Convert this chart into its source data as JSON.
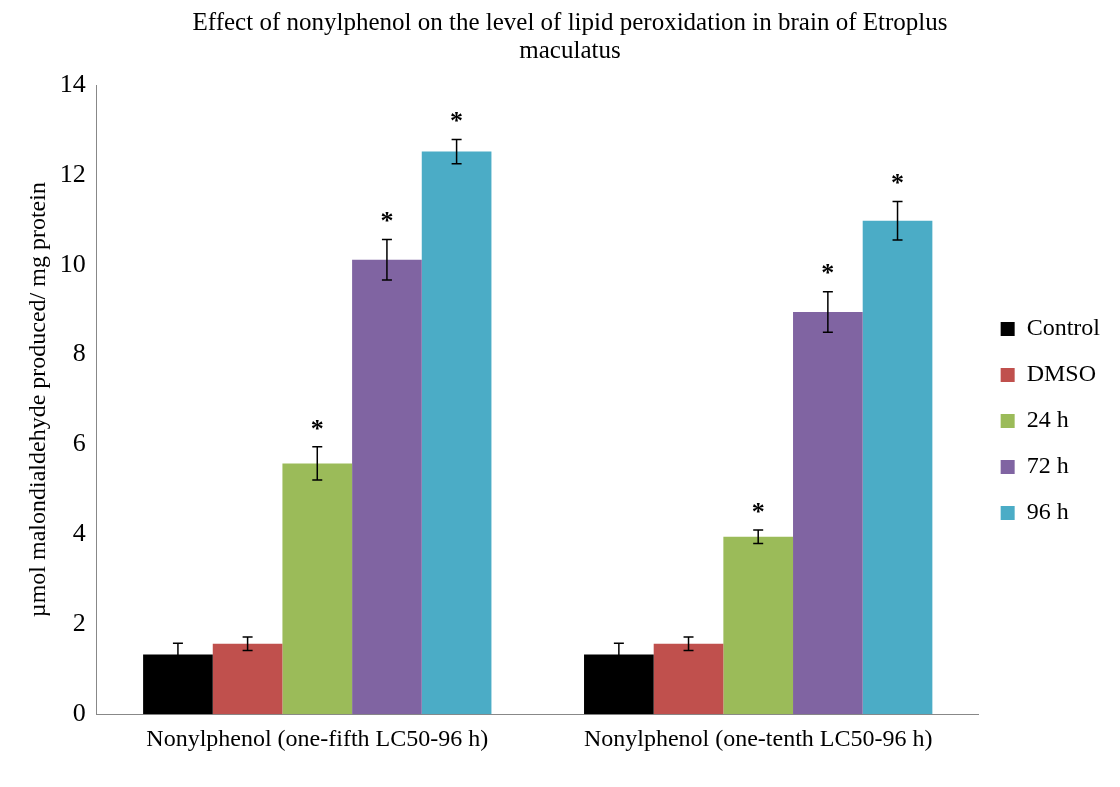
{
  "chart_data": {
    "type": "bar",
    "title": "Effect of nonylphenol on the level of lipid peroxidation in brain of Etroplus maculatus",
    "ylabel": "µmol malondialdehyde produced/ mg protein",
    "categories": [
      "Nonylphenol (one-fifth LC50-96 h)",
      "Nonylphenol (one-tenth LC50-96 h)"
    ],
    "series": [
      {
        "name": "Control",
        "color": "#000000",
        "values": [
          1.33,
          1.33
        ],
        "errors": [
          0.25,
          0.25
        ]
      },
      {
        "name": "DMSO",
        "color": "#c0504d",
        "values": [
          1.57,
          1.57
        ],
        "errors": [
          0.15,
          0.15
        ]
      },
      {
        "name": "24 h",
        "color": "#9bbb59",
        "values": [
          5.58,
          3.95
        ],
        "errors": [
          0.37,
          0.15
        ],
        "value_labels": [
          "*",
          "*"
        ]
      },
      {
        "name": "72 h",
        "color": "#8064a2",
        "values": [
          10.11,
          8.95
        ],
        "errors": [
          0.45,
          0.45
        ],
        "value_labels": [
          "*",
          "*"
        ]
      },
      {
        "name": "96 h",
        "color": "#4bacc6",
        "values": [
          12.52,
          10.98
        ],
        "errors": [
          0.27,
          0.43
        ],
        "value_labels": [
          "*",
          "*"
        ]
      }
    ],
    "ylim": [
      0,
      14
    ],
    "yticks": [
      0,
      2,
      4,
      6,
      8,
      10,
      12,
      14
    ],
    "grid": false,
    "legend": "right"
  }
}
